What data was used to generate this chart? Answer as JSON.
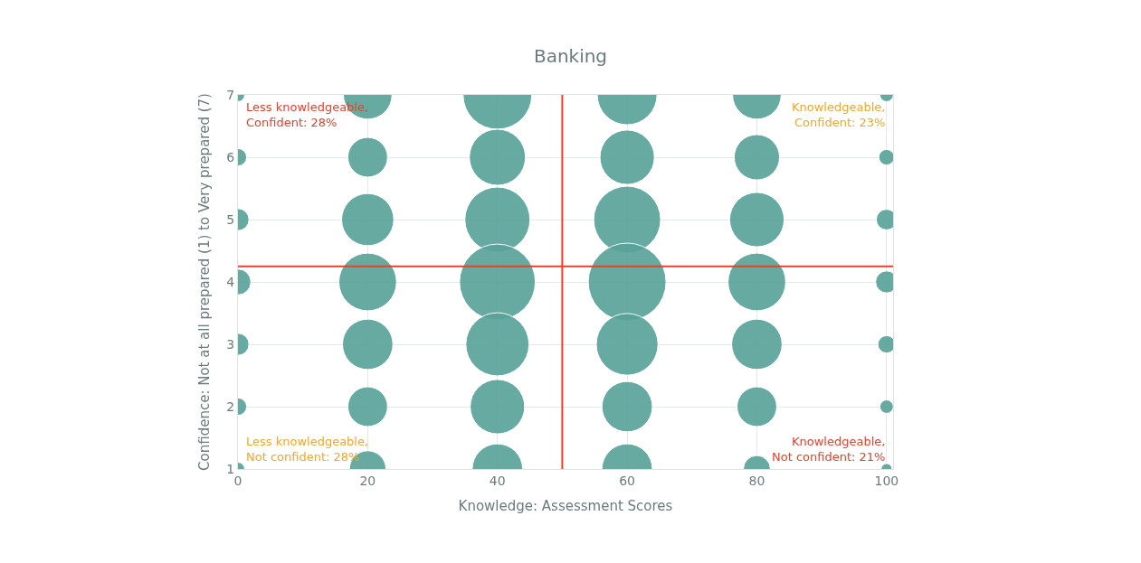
{
  "chart_data": {
    "type": "bubble",
    "title": "Banking",
    "xlabel": "Knowledge: Assessment Scores",
    "ylabel": "Confidence: Not at all prepared (1) to Very prepared (7)",
    "series": [
      {
        "color": "#5aa39a",
        "x": [
          0,
          0,
          0,
          0,
          0,
          0,
          0,
          20,
          20,
          20,
          20,
          20,
          20,
          20,
          40,
          40,
          40,
          40,
          40,
          40,
          40,
          60,
          60,
          60,
          60,
          60,
          60,
          60,
          80,
          80,
          80,
          80,
          80,
          80,
          80,
          100,
          100,
          100,
          100,
          100,
          100,
          100
        ],
        "values": [
          7,
          6,
          5,
          4,
          3,
          2,
          1,
          7,
          6,
          5,
          4,
          3,
          2,
          1,
          7,
          6,
          5,
          4,
          3,
          2,
          1,
          7,
          6,
          5,
          4,
          3,
          2,
          1,
          7,
          6,
          5,
          4,
          3,
          2,
          1,
          7,
          6,
          5,
          4,
          3,
          2,
          1
        ],
        "sizes": [
          0.03,
          0.05,
          0.08,
          0.11,
          0.08,
          0.05,
          0.03,
          0.39,
          0.26,
          0.45,
          0.55,
          0.42,
          0.26,
          0.22,
          0.78,
          0.52,
          0.7,
          0.95,
          0.66,
          0.49,
          0.42,
          0.59,
          0.49,
          0.74,
          1.0,
          0.63,
          0.42,
          0.42,
          0.39,
          0.34,
          0.49,
          0.55,
          0.42,
          0.26,
          0.12,
          0.03,
          0.04,
          0.07,
          0.08,
          0.05,
          0.03,
          0.02
        ]
      }
    ],
    "xlim": [
      0,
      101
    ],
    "xticks": [
      0,
      20,
      40,
      60,
      80,
      100
    ],
    "ylim": [
      1,
      7
    ],
    "yticks": [
      1,
      2,
      3,
      4,
      5,
      6,
      7
    ],
    "grid": true,
    "ref_lines": [
      {
        "axis": "x",
        "value": 50,
        "color": "#e8402a"
      },
      {
        "axis": "y",
        "value": 4.25,
        "color": "#e8402a"
      }
    ],
    "annotations": [
      "Less knowledgeable,\nConfident: 28%",
      "Knowledgeable,\nConfident: 23%",
      "Less knowledgeable,\nNot confident: 28%",
      "Knowledgeable,\nNot confident: 21%"
    ]
  }
}
